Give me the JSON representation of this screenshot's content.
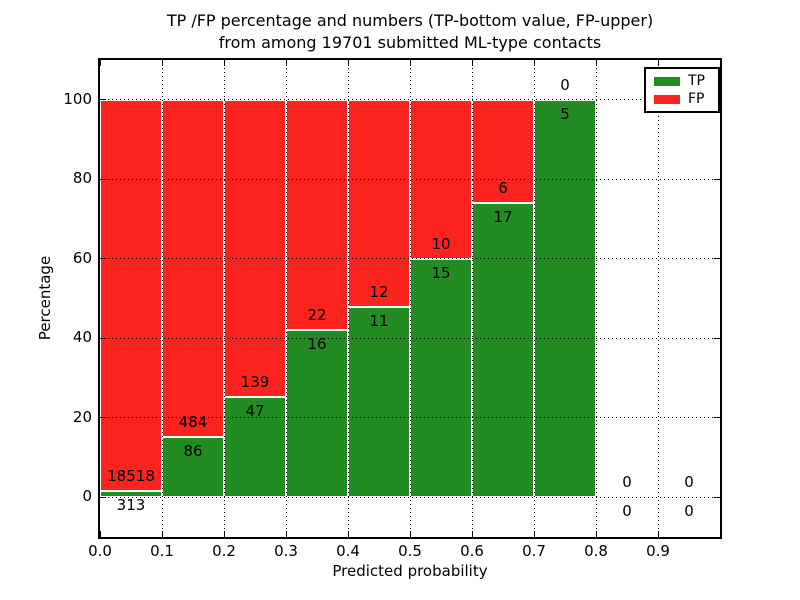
{
  "figure": {
    "xlabel": "Predicted probability",
    "ylabel": "Percentage"
  },
  "chart_data": {
    "type": "bar",
    "stacked": true,
    "title": "TP /FP percentage and numbers (TP-bottom value, FP-upper)\nfrom among 19701 submitted ML-type contacts",
    "xlabel": "Predicted probability",
    "ylabel": "Percentage",
    "total_contacts": 19701,
    "xlim": [
      0.0,
      1.0
    ],
    "ylim": [
      -10,
      110
    ],
    "grid": "dotted",
    "legend_position": "upper right",
    "bin_width": 0.1,
    "bins_start": [
      0.0,
      0.1,
      0.2,
      0.3,
      0.4,
      0.5,
      0.6,
      0.7,
      0.8,
      0.9
    ],
    "xtick_labels": [
      "0.0",
      "0.1",
      "0.2",
      "0.3",
      "0.4",
      "0.5",
      "0.6",
      "0.7",
      "0.8",
      "0.9"
    ],
    "yticks": [
      0,
      20,
      40,
      60,
      80,
      100
    ],
    "series": [
      {
        "name": "TP",
        "color": "#228b22",
        "counts": [
          313,
          86,
          47,
          16,
          11,
          15,
          17,
          5,
          0,
          0
        ],
        "percent": [
          1.66,
          15.09,
          25.27,
          42.11,
          47.83,
          60.0,
          73.91,
          100.0,
          0.0,
          0.0
        ]
      },
      {
        "name": "FP",
        "color": "#fa231e",
        "counts": [
          18518,
          484,
          139,
          22,
          12,
          10,
          6,
          0,
          0,
          0
        ],
        "percent": [
          98.34,
          84.91,
          74.73,
          57.89,
          52.17,
          40.0,
          26.09,
          0.0,
          0.0,
          0.0
        ]
      }
    ],
    "annotation_note": "FP count printed above TP/FP boundary, TP count printed below boundary"
  }
}
